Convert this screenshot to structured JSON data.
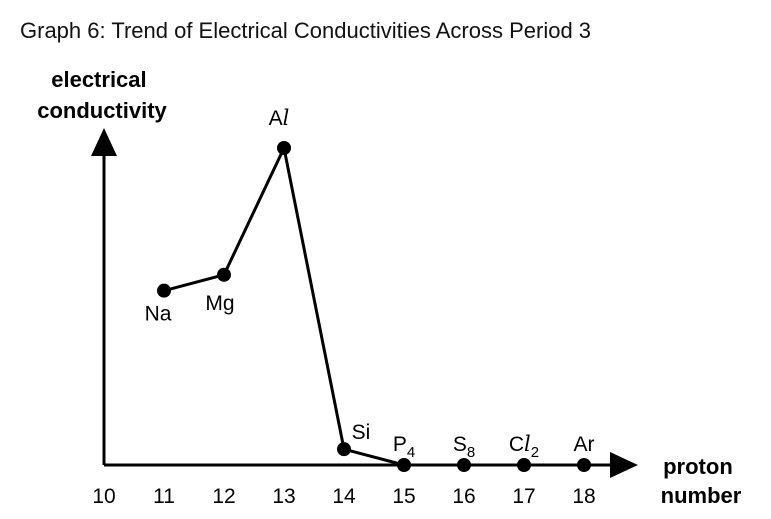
{
  "chart_data": {
    "type": "line",
    "title": "Graph 6: Trend of Electrical Conductivities Across Period 3",
    "ylabel": [
      "electrical",
      "conductivity"
    ],
    "xlabel": [
      "proton",
      "number"
    ],
    "xlim": [
      10,
      18
    ],
    "ylim": [
      0,
      100
    ],
    "x_ticks": [
      "10",
      "11",
      "12",
      "13",
      "14",
      "15",
      "16",
      "17",
      "18"
    ],
    "grid": false,
    "points": [
      {
        "x": 11,
        "y": 55,
        "label": "Na",
        "sub": ""
      },
      {
        "x": 12,
        "y": 60,
        "label": "Mg",
        "sub": ""
      },
      {
        "x": 13,
        "y": 100,
        "label": "Al",
        "sub": ""
      },
      {
        "x": 14,
        "y": 5,
        "label": "Si",
        "sub": ""
      },
      {
        "x": 15,
        "y": 0,
        "label": "P",
        "sub": "4"
      },
      {
        "x": 16,
        "y": 0,
        "label": "S",
        "sub": "8"
      },
      {
        "x": 17,
        "y": 0,
        "label": "Cl",
        "sub": "2"
      },
      {
        "x": 18,
        "y": 0,
        "label": "Ar",
        "sub": ""
      }
    ]
  }
}
